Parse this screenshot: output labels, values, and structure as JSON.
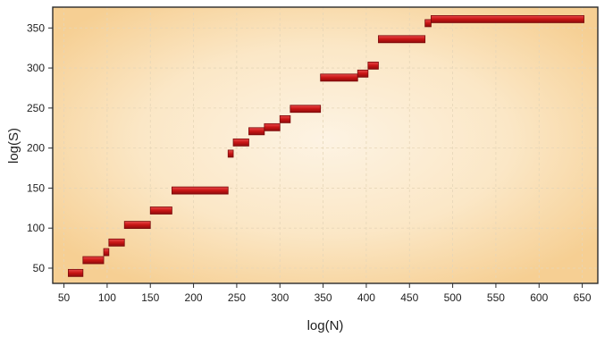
{
  "chart_data": {
    "type": "scatter",
    "xlabel": "log(N)",
    "ylabel": "log(S)",
    "xlim": [
      37,
      668
    ],
    "ylim": [
      31,
      376
    ],
    "xticks": [
      50,
      100,
      150,
      200,
      250,
      300,
      350,
      400,
      450,
      500,
      550,
      600,
      650
    ],
    "yticks": [
      50,
      100,
      150,
      200,
      250,
      300,
      350
    ],
    "grid": true,
    "colors": {
      "segment": "#cc1515",
      "segment_edge": "#7a0a0a",
      "plot_bg_edge": "#f6cf93",
      "plot_bg_center": "#fdf3e3",
      "grid": "#e6d6b8"
    },
    "segments": [
      {
        "x_start": 55,
        "x_end": 72,
        "y": 44
      },
      {
        "x_start": 72,
        "x_end": 96,
        "y": 60
      },
      {
        "x_start": 96,
        "x_end": 102,
        "y": 70
      },
      {
        "x_start": 102,
        "x_end": 120,
        "y": 82
      },
      {
        "x_start": 120,
        "x_end": 150,
        "y": 104
      },
      {
        "x_start": 150,
        "x_end": 175,
        "y": 122
      },
      {
        "x_start": 175,
        "x_end": 240,
        "y": 147
      },
      {
        "x_start": 240,
        "x_end": 246,
        "y": 193
      },
      {
        "x_start": 246,
        "x_end": 264,
        "y": 207
      },
      {
        "x_start": 264,
        "x_end": 282,
        "y": 221
      },
      {
        "x_start": 282,
        "x_end": 300,
        "y": 226
      },
      {
        "x_start": 300,
        "x_end": 312,
        "y": 236
      },
      {
        "x_start": 312,
        "x_end": 347,
        "y": 249
      },
      {
        "x_start": 347,
        "x_end": 390,
        "y": 288
      },
      {
        "x_start": 390,
        "x_end": 402,
        "y": 293
      },
      {
        "x_start": 402,
        "x_end": 414,
        "y": 303
      },
      {
        "x_start": 414,
        "x_end": 468,
        "y": 336
      },
      {
        "x_start": 468,
        "x_end": 475,
        "y": 356
      },
      {
        "x_start": 475,
        "x_end": 652,
        "y": 361
      }
    ]
  }
}
